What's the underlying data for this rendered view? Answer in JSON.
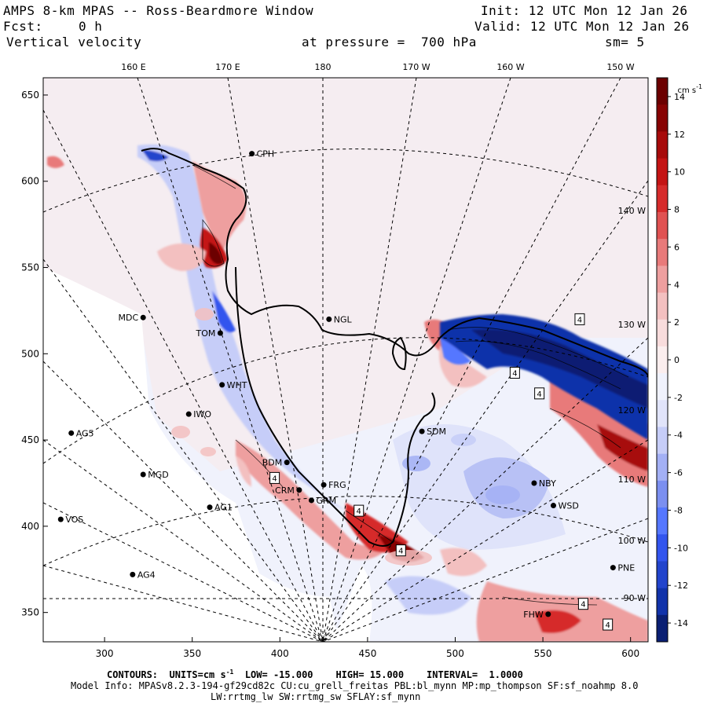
{
  "header": {
    "title": "AMPS 8-km MPAS -- Ross-Beardmore Window",
    "init_text": "Init: 12 UTC Mon 12 Jan 26",
    "fcst_label": "Fcst:",
    "fcst_value": "0 h",
    "valid_text": "Valid: 12 UTC Mon 12 Jan 26",
    "variable": "Vertical velocity",
    "pressure_text": "at pressure =  700 hPa",
    "smoothing": "sm= 5"
  },
  "map": {
    "lon_labels": [
      "160 E",
      "170 E",
      "180",
      "170 W",
      "160 W",
      "150 W"
    ],
    "lon_labels_right": [
      "140 W",
      "130 W",
      "120 W",
      "110 W",
      "100 W",
      "90 W"
    ],
    "y_ticks": [
      350,
      400,
      450,
      500,
      550,
      600,
      650
    ],
    "x_ticks": [
      300,
      350,
      400,
      450,
      500,
      550,
      600
    ],
    "stations": [
      {
        "name": "CPH",
        "x": 384,
        "y": 616
      },
      {
        "name": "MDC",
        "x": 322,
        "y": 521
      },
      {
        "name": "NGL",
        "x": 428,
        "y": 520
      },
      {
        "name": "TOM",
        "x": 366,
        "y": 512
      },
      {
        "name": "WHT",
        "x": 367,
        "y": 482
      },
      {
        "name": "IWO",
        "x": 348,
        "y": 465
      },
      {
        "name": "AG5",
        "x": 281,
        "y": 454
      },
      {
        "name": "SDM",
        "x": 481,
        "y": 455
      },
      {
        "name": "BDM",
        "x": 404,
        "y": 437
      },
      {
        "name": "MGD",
        "x": 322,
        "y": 430
      },
      {
        "name": "NBY",
        "x": 545,
        "y": 425
      },
      {
        "name": "FRG",
        "x": 425,
        "y": 424
      },
      {
        "name": "CRM",
        "x": 411,
        "y": 421
      },
      {
        "name": "GRM",
        "x": 418,
        "y": 415
      },
      {
        "name": "AG1",
        "x": 360,
        "y": 411
      },
      {
        "name": "WSD",
        "x": 556,
        "y": 412
      },
      {
        "name": "VOS",
        "x": 275,
        "y": 404
      },
      {
        "name": "PNE",
        "x": 590,
        "y": 376
      },
      {
        "name": "AG4",
        "x": 316,
        "y": 372
      },
      {
        "name": "FHW",
        "x": 553,
        "y": 349
      }
    ],
    "markers": [
      {
        "label": "4",
        "x": 397,
        "y": 428
      },
      {
        "name": "",
        "label": "4",
        "x": 445,
        "y": 409
      },
      {
        "label": "4",
        "x": 469,
        "y": 386
      },
      {
        "label": "4",
        "x": 534,
        "y": 489
      },
      {
        "label": "4",
        "x": 548,
        "y": 477
      },
      {
        "label": "4",
        "x": 587,
        "y": 343
      },
      {
        "label": "4",
        "x": 573,
        "y": 355
      },
      {
        "label": "4",
        "x": 571,
        "y": 520
      }
    ]
  },
  "colorbar": {
    "unit": "cm s",
    "unit_exp": "-1",
    "ticks": [
      14,
      12,
      10,
      8,
      6,
      4,
      2,
      0,
      -2,
      -4,
      -6,
      -8,
      -10,
      -12,
      -14
    ],
    "colors": [
      "#0a1f73",
      "#1133aa",
      "#2244cc",
      "#3355ee",
      "#5577ff",
      "#7b8ff0",
      "#a3b0f5",
      "#c6cdf8",
      "#e1e4fa",
      "#f0f2fc",
      "#fbeeee",
      "#f8dcdc",
      "#f3c0c0",
      "#ee9f9f",
      "#e87a7a",
      "#e05252",
      "#d62b2b",
      "#c41414",
      "#a70b0b",
      "#870303",
      "#6c0000"
    ]
  },
  "footer": {
    "contours_label": "CONTOURS:",
    "units_text": "UNITS=cm s",
    "units_exp": "-1",
    "low_text": "LOW= -15.000",
    "high_text": "HIGH= 15.000",
    "interval_text": "INTERVAL=  1.0000",
    "model_info": "Model Info: MPASv8.2.3-194-gf29cd82c CU:cu_grell_freitas PBL:bl_mynn MP:mp_thompson SF:sf_noahmp 8.0",
    "model_info2": "LW:rrtmg_lw SW:rrtmg_sw SFLAY:sf_mynn"
  }
}
